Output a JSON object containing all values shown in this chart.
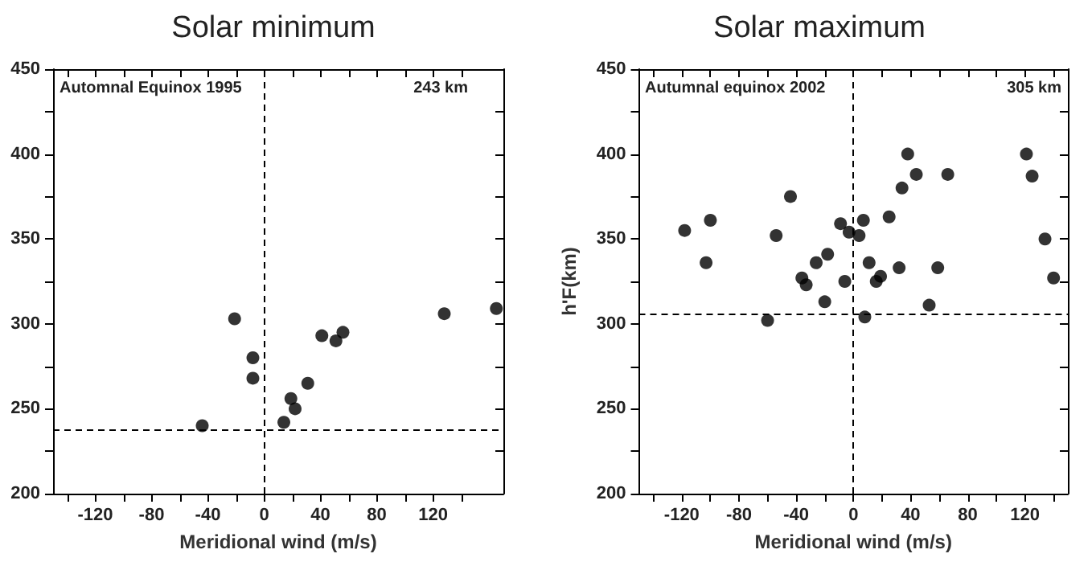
{
  "chart_data": [
    {
      "type": "scatter",
      "title": "Solar minimum",
      "xlabel": "Meridional wind (m/s)",
      "annotations": [
        "Automnal Equinox 1995",
        "243 km"
      ],
      "marker": "circle",
      "grid": false,
      "series": [
        {
          "color": "#000000",
          "x": [
            -44,
            -21,
            -8,
            -8,
            14,
            19,
            22,
            31,
            41,
            51,
            56,
            128,
            165
          ],
          "values": [
            240,
            303,
            280,
            268,
            242,
            256,
            250,
            265,
            293,
            290,
            295,
            306,
            309
          ]
        }
      ],
      "xlim": [
        -150,
        170
      ],
      "xticks": [
        {
          "value": -140,
          "label": null
        },
        -120,
        {
          "value": -100,
          "label": null
        },
        -80,
        {
          "value": -60,
          "label": null
        },
        -40,
        {
          "value": -20,
          "label": null
        },
        0,
        {
          "value": 20,
          "label": null
        },
        40,
        {
          "value": 60,
          "label": null
        },
        80,
        {
          "value": 100,
          "label": null
        },
        120,
        {
          "value": 140,
          "label": null
        }
      ],
      "ylim": [
        200,
        450
      ],
      "yticks": [
        200,
        {
          "value": 225,
          "label": null
        },
        250,
        {
          "value": 275,
          "label": null
        },
        300,
        {
          "value": 325,
          "label": null
        },
        350,
        {
          "value": 375,
          "label": null
        },
        400,
        {
          "value": 425,
          "label": null
        },
        450
      ],
      "ref_lines": [
        {
          "axis": "x",
          "value": 0,
          "line_style": "dashed"
        },
        {
          "axis": "y",
          "value": 238,
          "line_style": "dashed"
        }
      ]
    },
    {
      "type": "scatter",
      "title": "Solar maximum",
      "xlabel": "Meridional wind (m/s)",
      "ylabel": "h'F(km)",
      "annotations": [
        "Autumnal equinox 2002",
        "305 km"
      ],
      "marker": "circle",
      "grid": false,
      "series": [
        {
          "color": "#000000",
          "x": [
            -118,
            -100,
            -103,
            -44,
            -54,
            -36,
            -33,
            -26,
            -18,
            -20,
            -60,
            -9,
            -3,
            -6,
            4,
            7,
            8,
            11,
            16,
            19,
            25,
            32,
            34,
            38,
            44,
            59,
            53,
            66,
            121,
            125,
            134,
            140
          ],
          "values": [
            355,
            361,
            336,
            375,
            352,
            327,
            323,
            336,
            341,
            313,
            302,
            359,
            354,
            325,
            352,
            361,
            304,
            336,
            325,
            328,
            363,
            333,
            380,
            400,
            388,
            333,
            311,
            388,
            400,
            387,
            350,
            327
          ]
        }
      ],
      "xlim": [
        -150,
        150
      ],
      "xticks": [
        {
          "value": -140,
          "label": null
        },
        -120,
        {
          "value": -100,
          "label": null
        },
        -80,
        {
          "value": -60,
          "label": null
        },
        -40,
        {
          "value": -20,
          "label": null
        },
        0,
        {
          "value": 20,
          "label": null
        },
        40,
        {
          "value": 60,
          "label": null
        },
        80,
        {
          "value": 100,
          "label": null
        },
        120,
        {
          "value": 140,
          "label": null
        }
      ],
      "ylim": [
        200,
        450
      ],
      "yticks": [
        200,
        {
          "value": 225,
          "label": null
        },
        250,
        {
          "value": 275,
          "label": null
        },
        300,
        {
          "value": 325,
          "label": null
        },
        350,
        {
          "value": 375,
          "label": null
        },
        400,
        {
          "value": 425,
          "label": null
        },
        450
      ],
      "ref_lines": [
        {
          "axis": "x",
          "value": 0,
          "line_style": "dashed"
        },
        {
          "axis": "y",
          "value": 306,
          "line_style": "dashed"
        }
      ]
    }
  ]
}
